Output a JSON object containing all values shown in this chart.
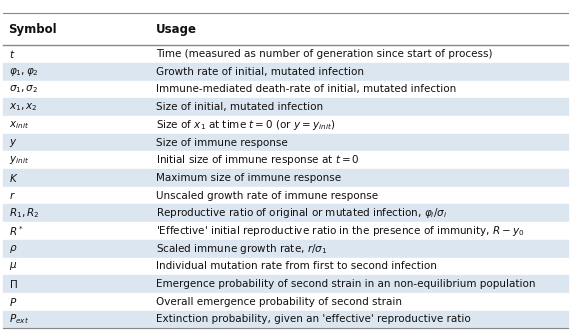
{
  "title_symbol": "Symbol",
  "title_usage": "Usage",
  "rows": [
    {
      "symbol": "$t$",
      "usage": "Time (measured as number of generation since start of process)",
      "shade": false
    },
    {
      "symbol": "$\\varphi_1, \\varphi_2$",
      "usage": "Growth rate of initial, mutated infection",
      "shade": true
    },
    {
      "symbol": "$\\sigma_1, \\sigma_2$",
      "usage": "Immune-mediated death-rate of initial, mutated infection",
      "shade": false
    },
    {
      "symbol": "$x_1, x_2$",
      "usage": "Size of initial, mutated infection",
      "shade": true
    },
    {
      "symbol": "$x_{init}$",
      "usage": "Size of $x_1$ at time $t = 0$ (or $y = y_{init}$)",
      "shade": false
    },
    {
      "symbol": "$y$",
      "usage": "Size of immune response",
      "shade": true
    },
    {
      "symbol": "$y_{init}$",
      "usage": "Initial size of immune response at $t = 0$",
      "shade": false
    },
    {
      "symbol": "$K$",
      "usage": "Maximum size of immune response",
      "shade": true
    },
    {
      "symbol": "$r$",
      "usage": "Unscaled growth rate of immune response",
      "shade": false
    },
    {
      "symbol": "$R_1, R_2$",
      "usage": "Reproductive ratio of original or mutated infection, $\\varphi_i/\\sigma_i$",
      "shade": true
    },
    {
      "symbol": "$R^*$",
      "usage": "'Effective' initial reproductive ratio in the presence of immunity, $R - y_0$",
      "shade": false
    },
    {
      "symbol": "$\\rho$",
      "usage": "Scaled immune growth rate, $r/\\sigma_1$",
      "shade": true
    },
    {
      "symbol": "$\\mu$",
      "usage": "Individual mutation rate from first to second infection",
      "shade": false
    },
    {
      "symbol": "$\\Pi$",
      "usage": "Emergence probability of second strain in an non-equilibrium population",
      "shade": true
    },
    {
      "symbol": "$P$",
      "usage": "Overall emergence probability of second strain",
      "shade": false
    },
    {
      "symbol": "$P_{ext}$",
      "usage": "Extinction probability, given an 'effective' reproductive ratio",
      "shade": true
    }
  ],
  "col_split": 0.255,
  "shade_color": "#dce6f0",
  "white_color": "#ffffff",
  "line_color": "#888888",
  "text_color": "#111111",
  "font_size": 7.5,
  "header_font_size": 8.5,
  "fig_width": 5.71,
  "fig_height": 3.35,
  "dpi": 100
}
